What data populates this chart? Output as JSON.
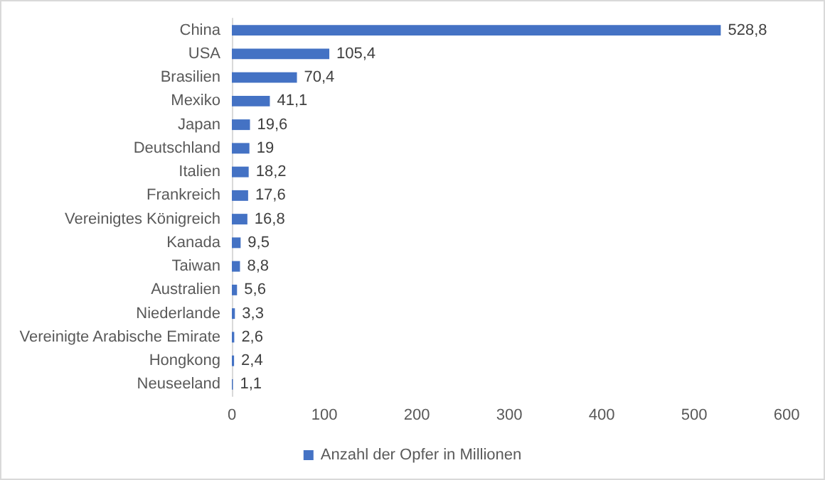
{
  "chart_data": {
    "type": "bar",
    "orientation": "horizontal",
    "categories": [
      "China",
      "USA",
      "Brasilien",
      "Mexiko",
      "Japan",
      "Deutschland",
      "Italien",
      "Frankreich",
      "Vereinigtes Königreich",
      "Kanada",
      "Taiwan",
      "Australien",
      "Niederlande",
      "Vereinigte Arabische Emirate",
      "Hongkong",
      "Neuseeland"
    ],
    "series": [
      {
        "name": "Anzahl der Opfer in Millionen",
        "color": "#4472c4",
        "values": [
          528.8,
          105.4,
          70.4,
          41.1,
          19.6,
          19,
          18.2,
          17.6,
          16.8,
          9.5,
          8.8,
          5.6,
          3.3,
          2.6,
          2.4,
          1.1
        ],
        "value_labels": [
          "528,8",
          "105,4",
          "70,4",
          "41,1",
          "19,6",
          "19",
          "18,2",
          "17,6",
          "16,8",
          "9,5",
          "8,8",
          "5,6",
          "3,3",
          "2,6",
          "2,4",
          "1,1"
        ]
      }
    ],
    "xlim": [
      0,
      600
    ],
    "xticks": [
      0,
      100,
      200,
      300,
      400,
      500,
      600
    ],
    "grid": false,
    "legend": "bottom"
  }
}
